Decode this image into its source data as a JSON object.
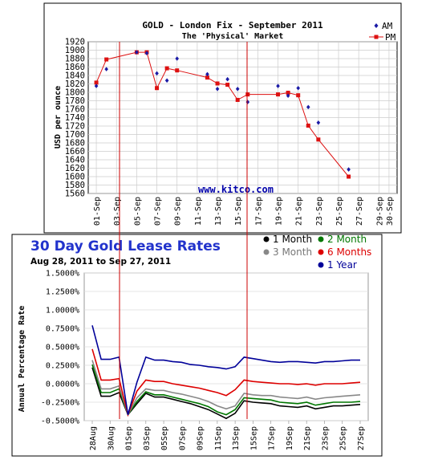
{
  "chart_data": [
    {
      "type": "line",
      "title": "GOLD - London Fix - September 2011",
      "subtitle": "The 'Physical' Market",
      "ylabel": "USD per ounce",
      "xlabel": "",
      "watermark": "www.kitco.com",
      "ylim": [
        1560,
        1920
      ],
      "yticks": [
        1560,
        1580,
        1600,
        1620,
        1640,
        1660,
        1680,
        1700,
        1720,
        1740,
        1760,
        1780,
        1800,
        1820,
        1840,
        1860,
        1880,
        1900,
        1920
      ],
      "xticks": [
        "01-Sep",
        "03-Sep",
        "05-Sep",
        "07-Sep",
        "09-Sep",
        "11-Sep",
        "13-Sep",
        "15-Sep",
        "17-Sep",
        "19-Sep",
        "21-Sep",
        "23-Sep",
        "25-Sep",
        "27-Sep",
        "29-Sep",
        "30-Sep"
      ],
      "xdays": [
        1,
        3,
        5,
        7,
        9,
        11,
        13,
        15,
        17,
        19,
        21,
        23,
        25,
        27,
        29,
        30
      ],
      "legend_position": "top-right",
      "series": [
        {
          "name": "AM",
          "marker": "diamond",
          "line": false,
          "color": "#1a1aa6",
          "x": [
            1,
            2,
            5,
            6,
            7,
            8,
            9,
            12,
            13,
            14,
            15,
            16,
            19,
            20,
            21,
            22,
            23,
            26
          ],
          "values": [
            1815,
            1855,
            1895,
            1893,
            1845,
            1828,
            1880,
            1843,
            1808,
            1831,
            1808,
            1777,
            1815,
            1792,
            1810,
            1765,
            1728,
            1617
          ]
        },
        {
          "name": "PM",
          "marker": "square",
          "line": true,
          "color": "#dd1111",
          "x": [
            1,
            2,
            5,
            6,
            7,
            8,
            9,
            12,
            13,
            14,
            15,
            16,
            19,
            20,
            21,
            22,
            23,
            26
          ],
          "values": [
            1823,
            1878,
            1895,
            1895,
            1810,
            1857,
            1852,
            1835,
            1821,
            1818,
            1782,
            1795,
            1795,
            1799,
            1793,
            1721,
            1688,
            1600
          ]
        }
      ]
    },
    {
      "type": "line",
      "title": "30 Day Gold Lease Rates",
      "subtitle": "Aug 28, 2011 to Sep 27, 2011",
      "ylabel": "Annual Percentage Rate",
      "xlabel": "",
      "ylim": [
        -0.5,
        1.5
      ],
      "yticks": [
        "-0.5000%",
        "-0.2500%",
        "0.0000%",
        "0.2500%",
        "0.5000%",
        "0.7500%",
        "1.0000%",
        "1.2500%",
        "1.5000%"
      ],
      "ytick_values": [
        -0.5,
        -0.25,
        0,
        0.25,
        0.5,
        0.75,
        1.0,
        1.25,
        1.5
      ],
      "xticks": [
        "28Aug",
        "30Aug",
        "01Sep",
        "03Sep",
        "05Sep",
        "07Sep",
        "09Sep",
        "11Sep",
        "13Sep",
        "15Sep",
        "17Sep",
        "19Sep",
        "21Sep",
        "23Sep",
        "25Sep",
        "27Sep"
      ],
      "legend_position": "top-right",
      "series": [
        {
          "name": "1 Month",
          "color": "#000000",
          "x": [
            1,
            2,
            3,
            4,
            5,
            6,
            7,
            8,
            9,
            10,
            11,
            12,
            13,
            14,
            15,
            16,
            17,
            18,
            19,
            20,
            21,
            22,
            23,
            24,
            25,
            26,
            27,
            28,
            29,
            30,
            31
          ],
          "values": [
            0.22,
            -0.17,
            -0.17,
            -0.12,
            -0.42,
            -0.27,
            -0.13,
            -0.18,
            -0.18,
            -0.21,
            -0.24,
            -0.27,
            -0.31,
            -0.35,
            -0.41,
            -0.47,
            -0.4,
            -0.23,
            -0.25,
            -0.26,
            -0.27,
            -0.3,
            -0.31,
            -0.32,
            -0.3,
            -0.34,
            -0.32,
            -0.3,
            -0.3,
            -0.29,
            -0.28
          ]
        },
        {
          "name": "2 Month",
          "color": "#007700",
          "x": [
            1,
            2,
            3,
            4,
            5,
            6,
            7,
            8,
            9,
            10,
            11,
            12,
            13,
            14,
            15,
            16,
            17,
            18,
            19,
            20,
            21,
            22,
            23,
            24,
            25,
            26,
            27,
            28,
            29,
            30,
            31
          ],
          "values": [
            0.26,
            -0.12,
            -0.12,
            -0.07,
            -0.42,
            -0.24,
            -0.11,
            -0.15,
            -0.15,
            -0.18,
            -0.21,
            -0.24,
            -0.27,
            -0.31,
            -0.38,
            -0.42,
            -0.35,
            -0.19,
            -0.2,
            -0.21,
            -0.22,
            -0.25,
            -0.26,
            -0.27,
            -0.25,
            -0.29,
            -0.27,
            -0.25,
            -0.25,
            -0.25,
            -0.24
          ]
        },
        {
          "name": "3 Month",
          "color": "#888888",
          "x": [
            1,
            2,
            3,
            4,
            5,
            6,
            7,
            8,
            9,
            10,
            11,
            12,
            13,
            14,
            15,
            16,
            17,
            18,
            19,
            20,
            21,
            22,
            23,
            24,
            25,
            26,
            27,
            28,
            29,
            30,
            31
          ],
          "values": [
            0.32,
            -0.07,
            -0.07,
            -0.03,
            -0.42,
            -0.19,
            -0.07,
            -0.09,
            -0.09,
            -0.12,
            -0.14,
            -0.17,
            -0.2,
            -0.24,
            -0.3,
            -0.34,
            -0.3,
            -0.13,
            -0.15,
            -0.16,
            -0.16,
            -0.18,
            -0.19,
            -0.2,
            -0.18,
            -0.21,
            -0.19,
            -0.18,
            -0.17,
            -0.16,
            -0.15
          ]
        },
        {
          "name": "6 Months",
          "color": "#dd0000",
          "x": [
            1,
            2,
            3,
            4,
            5,
            6,
            7,
            8,
            9,
            10,
            11,
            12,
            13,
            14,
            15,
            16,
            17,
            18,
            19,
            20,
            21,
            22,
            23,
            24,
            25,
            26,
            27,
            28,
            29,
            30,
            31
          ],
          "values": [
            0.47,
            0.05,
            0.05,
            0.07,
            -0.42,
            -0.1,
            0.05,
            0.03,
            0.03,
            0.0,
            -0.02,
            -0.04,
            -0.06,
            -0.09,
            -0.12,
            -0.16,
            -0.08,
            0.05,
            0.03,
            0.02,
            0.01,
            0.0,
            0.0,
            -0.01,
            0.0,
            -0.02,
            0.0,
            0.0,
            0.0,
            0.01,
            0.02
          ]
        },
        {
          "name": "1 Year",
          "color": "#000099",
          "x": [
            1,
            2,
            3,
            4,
            5,
            6,
            7,
            8,
            9,
            10,
            11,
            12,
            13,
            14,
            15,
            16,
            17,
            18,
            19,
            20,
            21,
            22,
            23,
            24,
            25,
            26,
            27,
            28,
            29,
            30,
            31
          ],
          "values": [
            0.79,
            0.33,
            0.33,
            0.36,
            -0.42,
            0.02,
            0.36,
            0.32,
            0.32,
            0.3,
            0.29,
            0.26,
            0.25,
            0.23,
            0.22,
            0.2,
            0.23,
            0.36,
            0.34,
            0.32,
            0.3,
            0.29,
            0.3,
            0.3,
            0.29,
            0.28,
            0.3,
            0.3,
            0.31,
            0.32,
            0.32
          ]
        }
      ]
    }
  ]
}
